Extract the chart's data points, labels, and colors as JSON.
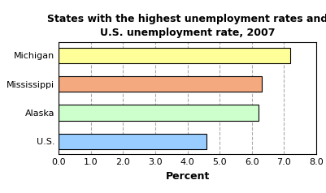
{
  "title_line1": "States with the highest unemployment rates and",
  "title_line2": "U.S. unemployment rate, 2007",
  "categories": [
    "Michigan",
    "Mississippi",
    "Alaska",
    "U.S."
  ],
  "values": [
    7.2,
    6.3,
    6.2,
    4.6
  ],
  "bar_colors": [
    "#FFFF99",
    "#F4A97F",
    "#CCFFCC",
    "#99CCFF"
  ],
  "bar_edgecolors": [
    "#000000",
    "#000000",
    "#000000",
    "#000000"
  ],
  "xlabel": "Percent",
  "xlim": [
    0,
    8.0
  ],
  "xticks": [
    0.0,
    1.0,
    2.0,
    3.0,
    4.0,
    5.0,
    6.0,
    7.0,
    8.0
  ],
  "xtick_labels": [
    "0.0",
    "1.0",
    "2.0",
    "3.0",
    "4.0",
    "5.0",
    "6.0",
    "7.0",
    "8.0"
  ],
  "title_fontsize": 9,
  "xlabel_fontsize": 9,
  "tick_fontsize": 8,
  "ytick_fontsize": 8,
  "background_color": "#FFFFFF",
  "grid_color": "#AAAAAA",
  "grid_style": "--",
  "bar_height": 0.55
}
